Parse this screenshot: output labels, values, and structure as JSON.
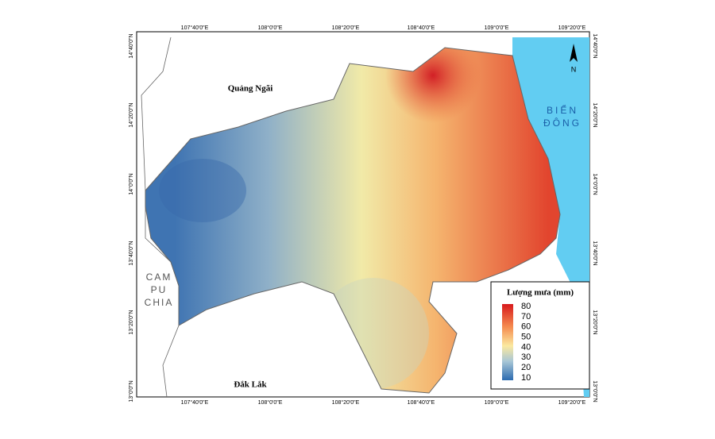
{
  "map": {
    "lon_labels": [
      "107°40'0\"E",
      "108°0'0\"E",
      "108°20'0\"E",
      "108°40'0\"E",
      "109°0'0\"E",
      "109°20'0\"E"
    ],
    "lat_labels": [
      "14°40'0\"N",
      "14°20'0\"N",
      "14°0'0\"N",
      "13°40'0\"N",
      "13°20'0\"N",
      "13°0'0\"N"
    ],
    "places": {
      "quang_ngai": "Quảng Ngãi",
      "campuchia": [
        "CAM",
        "PU",
        "CHIA"
      ],
      "bien_dong": [
        "BIỂN",
        "ĐÔNG"
      ],
      "dak_lak": "Đắk Lắk"
    },
    "north": "N",
    "legend": {
      "title": "Lượng mưa (mm)",
      "ticks": [
        80,
        70,
        60,
        50,
        40,
        30,
        20,
        10
      ],
      "range": [
        10,
        80
      ]
    }
  }
}
